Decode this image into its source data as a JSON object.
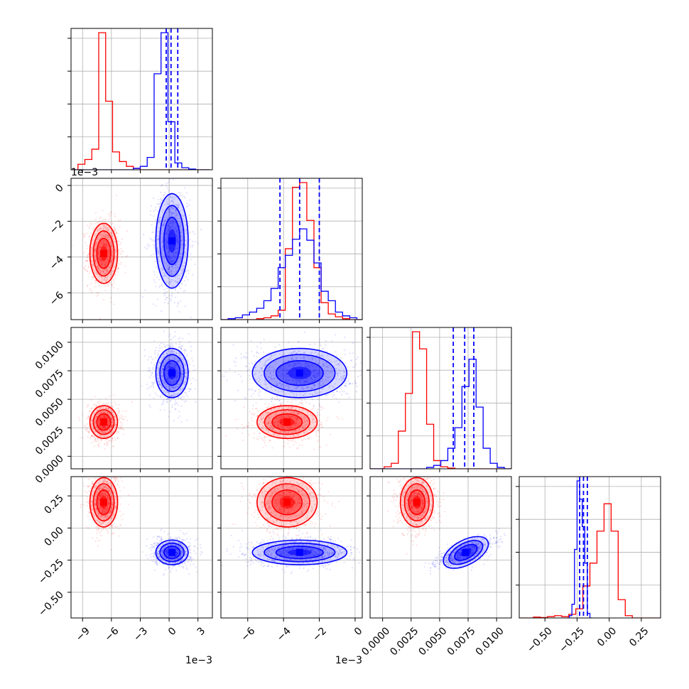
{
  "colors": {
    "red_series": "#ff0000",
    "blue_series": "#0000ff",
    "grid": "#b0b0b0",
    "axis": "#000000"
  },
  "chart_data": {
    "type": "corner",
    "grid": true,
    "parameters": [
      {
        "range": [
          -0.0102,
          0.0045
        ],
        "ticks": [
          -0.009,
          -0.006,
          -0.003,
          0.0,
          0.003
        ],
        "tick_labels": [
          "−9",
          "−6",
          "−3",
          "0",
          "3"
        ],
        "offset_label": "1e−3"
      },
      {
        "range": [
          -0.0075,
          0.0004
        ],
        "ticks": [
          -0.006,
          -0.004,
          -0.002,
          0.0
        ],
        "tick_labels": [
          "−6",
          "−4",
          "−2",
          "0"
        ],
        "offset_label": "1e−3"
      },
      {
        "range": [
          -0.0011,
          0.0113
        ],
        "ticks": [
          0.0,
          0.0025,
          0.005,
          0.0075,
          0.01
        ],
        "tick_labels": [
          "0.0000",
          "0.0025",
          "0.0050",
          "0.0075",
          "0.0100"
        ],
        "offset_label": ""
      },
      {
        "range": [
          -0.7,
          0.4
        ],
        "ticks": [
          -0.5,
          -0.25,
          0.0,
          0.25
        ],
        "tick_labels": [
          "−0.50",
          "−0.25",
          "0.00",
          "0.25"
        ],
        "offset_label": ""
      }
    ],
    "series": [
      {
        "color": "red",
        "means": [
          -0.0068,
          -0.0038,
          0.003,
          0.2
        ],
        "stds": [
          0.0006,
          0.0007,
          0.0006,
          0.08
        ]
      },
      {
        "color": "blue",
        "means": [
          0.0003,
          -0.0031,
          0.0073,
          -0.19
        ],
        "stds": [
          0.0007,
          0.0011,
          0.0009,
          0.04
        ]
      }
    ],
    "quantile_lines": [
      [
        -0.0003,
        0.0002,
        0.0009
      ],
      [
        -0.0042,
        -0.0031,
        -0.002
      ],
      [
        0.0062,
        0.0072,
        0.008
      ],
      [
        -0.23,
        -0.2,
        -0.17
      ]
    ],
    "histograms": [
      {
        "edges_start": -0.0102,
        "bin_width": 0.00072,
        "red": [
          0,
          8,
          15,
          30,
          200,
          100,
          26,
          12,
          5,
          2,
          0,
          0,
          0,
          0,
          0,
          0,
          0,
          0,
          0,
          0
        ],
        "blue": [
          0,
          0,
          0,
          0,
          0,
          0,
          0,
          0,
          0,
          2,
          5,
          18,
          140,
          200,
          70,
          10,
          3,
          1,
          0,
          0
        ]
      },
      {
        "edges_start": -0.0075,
        "bin_width": 0.0004,
        "red": [
          0,
          0,
          0,
          0,
          0,
          1,
          2,
          4,
          10,
          75,
          140,
          145,
          105,
          55,
          18,
          6,
          3,
          1,
          0,
          0
        ],
        "blue": [
          0,
          1,
          2,
          5,
          8,
          12,
          20,
          33,
          55,
          68,
          85,
          96,
          84,
          60,
          30,
          20,
          8,
          4,
          2,
          0
        ]
      },
      {
        "edges_start": -0.0011,
        "bin_width": 0.00062,
        "red": [
          0,
          0,
          3,
          8,
          55,
          110,
          200,
          175,
          65,
          12,
          3,
          1,
          0,
          0,
          0,
          0,
          0,
          0,
          0,
          0
        ],
        "blue": [
          0,
          0,
          0,
          0,
          0,
          0,
          0,
          0,
          2,
          5,
          12,
          30,
          60,
          120,
          160,
          90,
          30,
          8,
          2,
          0
        ]
      },
      {
        "edges_start": -0.7,
        "bin_width": 0.055,
        "red": [
          0,
          0,
          2,
          1,
          3,
          5,
          3,
          8,
          20,
          70,
          120,
          190,
          250,
          190,
          40,
          5,
          0,
          0,
          0,
          0
        ],
        "blue": [
          0,
          0,
          0,
          0,
          0,
          0,
          0,
          0,
          0,
          0,
          0,
          0,
          0,
          0,
          0,
          0,
          0,
          0,
          0,
          0
        ],
        "blue_fine": {
          "edges_start": -0.33,
          "bin_width": 0.02,
          "values": [
            0,
            5,
            30,
            150,
            300,
            260,
            200,
            120,
            10,
            0
          ]
        }
      }
    ]
  }
}
